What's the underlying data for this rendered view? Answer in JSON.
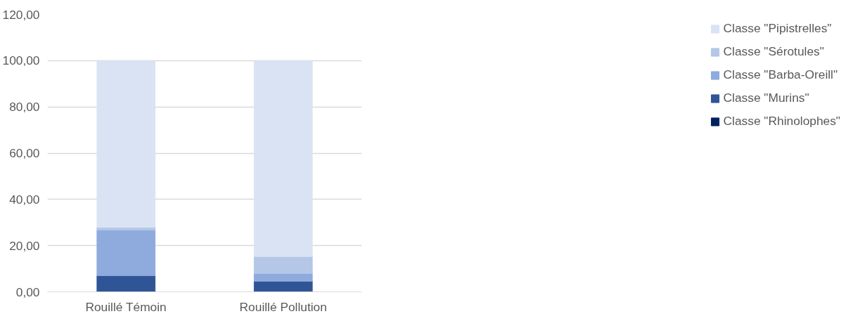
{
  "chart_data": {
    "type": "bar",
    "stacked": true,
    "categories": [
      "Rouillé Témoin",
      "Rouillé Pollution"
    ],
    "series": [
      {
        "name": "Classe \"Rhinolophes\"",
        "color": "#002060",
        "values": [
          0,
          0
        ]
      },
      {
        "name": "Classe \"Murins\"",
        "color": "#2f5597",
        "values": [
          7.0,
          4.6
        ]
      },
      {
        "name": "Classe \"Barba-Oreill\"",
        "color": "#8faadc",
        "values": [
          19.7,
          3.4
        ]
      },
      {
        "name": "Classe \"Sérotules\"",
        "color": "#b4c7e7",
        "values": [
          1.2,
          7.3
        ]
      },
      {
        "name": "Classe \"Pipistrelles\"",
        "color": "#dae3f3",
        "values": [
          72.1,
          84.7
        ]
      }
    ],
    "ylim": [
      0,
      120
    ],
    "yticks": [
      {
        "value": 0,
        "label": "0,00"
      },
      {
        "value": 20,
        "label": "20,00"
      },
      {
        "value": 40,
        "label": "40,00"
      },
      {
        "value": 60,
        "label": "60,00"
      },
      {
        "value": 80,
        "label": "80,00"
      },
      {
        "value": 100,
        "label": "100,00"
      },
      {
        "value": 120,
        "label": "120,00"
      }
    ],
    "grid": "y",
    "legend": "right"
  }
}
